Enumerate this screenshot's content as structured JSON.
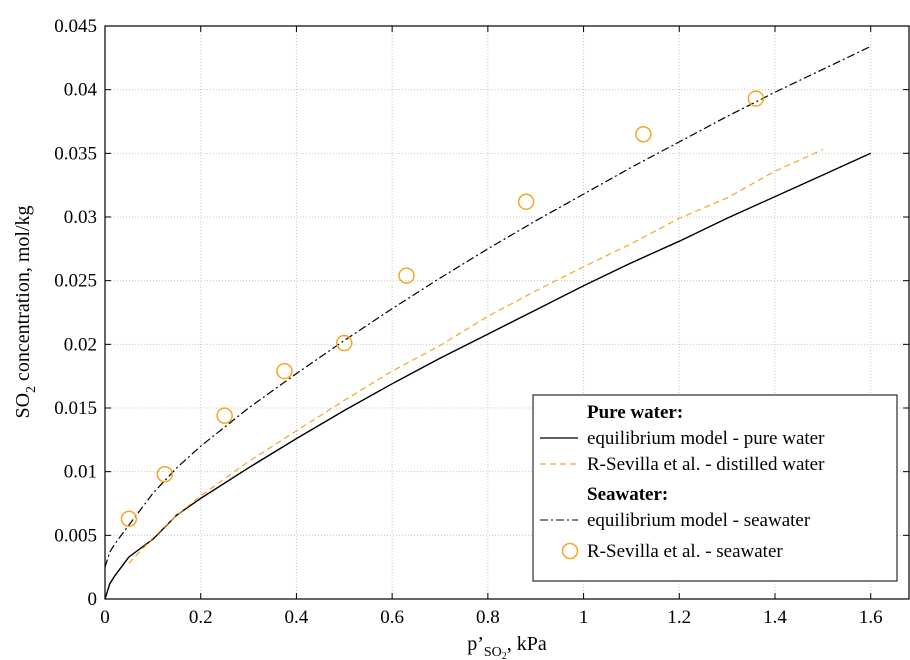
{
  "chart_data": {
    "type": "line",
    "xlabel": {
      "prefix": "p’",
      "subscript": "SO",
      "sub_subscript": "2",
      "suffix": ", kPa"
    },
    "ylabel": {
      "prefix": "SO",
      "subscript": "2",
      "suffix": " concentration, mol/kg"
    },
    "xlim": [
      0,
      1.68
    ],
    "ylim": [
      0,
      0.045
    ],
    "x_ticks": [
      "0",
      "0.2",
      "0.4",
      "0.6",
      "0.8",
      "1",
      "1.2",
      "1.4",
      "1.6"
    ],
    "x_tick_values": [
      0,
      0.2,
      0.4,
      0.6,
      0.8,
      1.0,
      1.2,
      1.4,
      1.6
    ],
    "y_ticks": [
      "0",
      "0.005",
      "0.01",
      "0.015",
      "0.02",
      "0.025",
      "0.03",
      "0.035",
      "0.04",
      "0.045"
    ],
    "y_tick_values": [
      0,
      0.005,
      0.01,
      0.015,
      0.02,
      0.025,
      0.03,
      0.035,
      0.04,
      0.045
    ],
    "grid": true,
    "legend_position": "bottom-right",
    "series": [
      {
        "name": "equilibrium model - pure water",
        "kind": "line",
        "style": "solid",
        "color": "#000000",
        "x": [
          0,
          0.01,
          0.02,
          0.05,
          0.1,
          0.15,
          0.2,
          0.3,
          0.4,
          0.5,
          0.6,
          0.7,
          0.8,
          0.9,
          1.0,
          1.1,
          1.2,
          1.3,
          1.4,
          1.5,
          1.6
        ],
        "y": [
          0,
          0.0012,
          0.0018,
          0.0033,
          0.0047,
          0.0066,
          0.0079,
          0.0103,
          0.0126,
          0.0148,
          0.0169,
          0.0189,
          0.0208,
          0.0227,
          0.0246,
          0.0264,
          0.0281,
          0.0299,
          0.0316,
          0.0333,
          0.035
        ]
      },
      {
        "name": "R-Sevilla et al. - distilled water",
        "kind": "line",
        "style": "dashed",
        "color": "#F5A623",
        "x": [
          0.05,
          0.1,
          0.15,
          0.2,
          0.3,
          0.4,
          0.5,
          0.6,
          0.7,
          0.8,
          0.9,
          1.0,
          1.1,
          1.2,
          1.3,
          1.4,
          1.5
        ],
        "y": [
          0.0028,
          0.0048,
          0.0066,
          0.0081,
          0.0108,
          0.0132,
          0.0156,
          0.0179,
          0.0199,
          0.0222,
          0.0242,
          0.0261,
          0.0279,
          0.0299,
          0.0315,
          0.0336,
          0.0353
        ]
      },
      {
        "name": "equilibrium model - seawater",
        "kind": "line",
        "style": "dashdot",
        "color": "#000000",
        "x": [
          0,
          0.01,
          0.02,
          0.05,
          0.1,
          0.15,
          0.2,
          0.3,
          0.4,
          0.5,
          0.6,
          0.7,
          0.8,
          0.9,
          1.0,
          1.1,
          1.2,
          1.3,
          1.4,
          1.5,
          1.6
        ],
        "y": [
          0.0025,
          0.0037,
          0.0043,
          0.0058,
          0.0083,
          0.0103,
          0.012,
          0.015,
          0.0177,
          0.0203,
          0.0228,
          0.0252,
          0.0275,
          0.0297,
          0.0318,
          0.0339,
          0.0359,
          0.0379,
          0.0398,
          0.0416,
          0.0434
        ]
      },
      {
        "name": "R-Sevilla et al. - seawater",
        "kind": "scatter",
        "marker": "circle-open",
        "color": "#F5A623",
        "x": [
          0.05,
          0.125,
          0.25,
          0.375,
          0.5,
          0.63,
          0.88,
          1.125,
          1.36
        ],
        "y": [
          0.0063,
          0.0098,
          0.0144,
          0.0179,
          0.0201,
          0.0254,
          0.0312,
          0.0365,
          0.0393
        ]
      }
    ],
    "legend": {
      "group1_title": "Pure water:",
      "group2_title": "Seawater:",
      "entries": [
        "equilibrium model - pure water",
        "R-Sevilla et al. - distilled water",
        "equilibrium model - seawater",
        "R-Sevilla et al. - seawater"
      ]
    }
  }
}
